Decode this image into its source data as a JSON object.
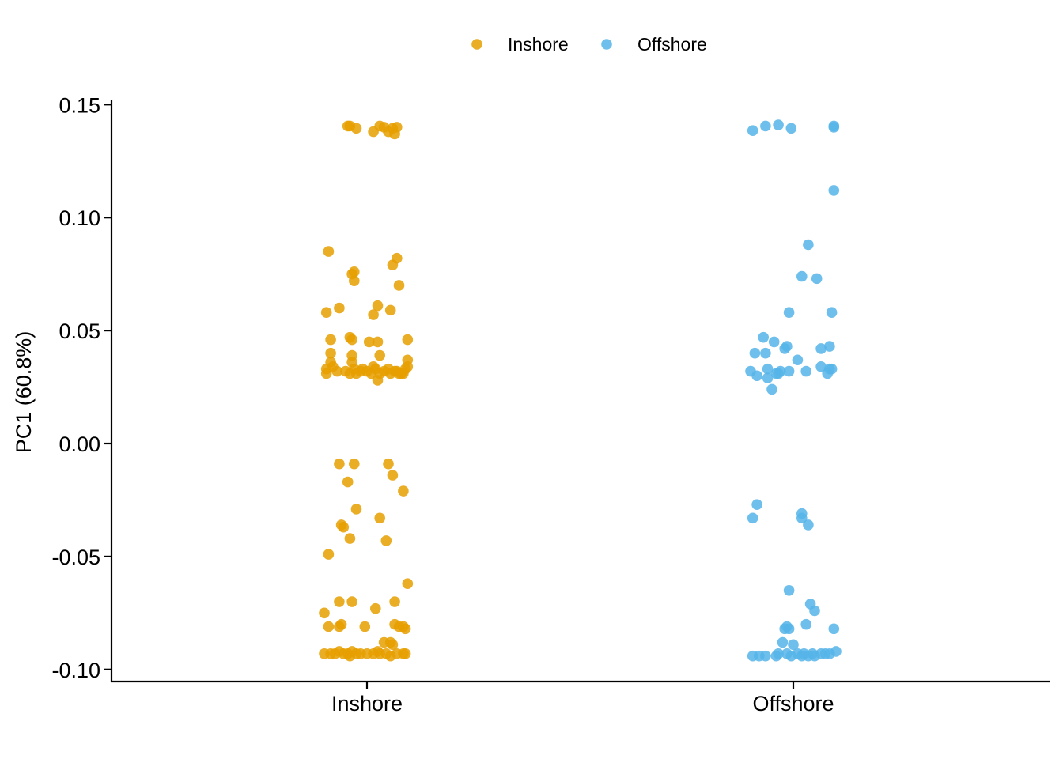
{
  "chart_data": {
    "type": "scatter",
    "xlabel": "",
    "ylabel": "PC1 (60.8%)",
    "ylim": [
      -0.105,
      0.152
    ],
    "yticks": [
      -0.1,
      -0.05,
      0.0,
      0.05,
      0.1,
      0.15
    ],
    "ytick_labels": [
      "-0.10",
      "-0.05",
      "0.00",
      "0.05",
      "0.10",
      "0.15"
    ],
    "categories": [
      "Inshore",
      "Offshore"
    ],
    "grid": false,
    "legend": "top",
    "series": [
      {
        "name": "Inshore",
        "color": "#E69F00",
        "category": "Inshore",
        "points": [
          [
            -0.09,
            0.1405
          ],
          [
            -0.08,
            0.1405
          ],
          [
            -0.05,
            0.1395
          ],
          [
            0.03,
            0.138
          ],
          [
            0.06,
            0.1405
          ],
          [
            0.08,
            0.14
          ],
          [
            0.1,
            0.138
          ],
          [
            0.12,
            0.1395
          ],
          [
            0.14,
            0.14
          ],
          [
            0.13,
            0.137
          ],
          [
            -0.18,
            0.085
          ],
          [
            -0.06,
            0.076
          ],
          [
            -0.07,
            0.075
          ],
          [
            -0.06,
            0.072
          ],
          [
            0.14,
            0.082
          ],
          [
            0.12,
            0.079
          ],
          [
            0.15,
            0.07
          ],
          [
            -0.19,
            0.058
          ],
          [
            -0.13,
            0.06
          ],
          [
            0.05,
            0.061
          ],
          [
            0.03,
            0.057
          ],
          [
            0.11,
            0.059
          ],
          [
            -0.17,
            0.046
          ],
          [
            -0.08,
            0.047
          ],
          [
            -0.07,
            0.046
          ],
          [
            0.01,
            0.045
          ],
          [
            0.05,
            0.045
          ],
          [
            0.19,
            0.046
          ],
          [
            -0.17,
            0.04
          ],
          [
            -0.07,
            0.039
          ],
          [
            0.06,
            0.039
          ],
          [
            -0.17,
            0.036
          ],
          [
            -0.16,
            0.034
          ],
          [
            -0.19,
            0.033
          ],
          [
            -0.19,
            0.031
          ],
          [
            -0.14,
            0.032
          ],
          [
            -0.1,
            0.032
          ],
          [
            -0.08,
            0.031
          ],
          [
            -0.07,
            0.036
          ],
          [
            -0.06,
            0.033
          ],
          [
            -0.05,
            0.031
          ],
          [
            -0.03,
            0.032
          ],
          [
            -0.02,
            0.033
          ],
          [
            0.0,
            0.032
          ],
          [
            0.02,
            0.031
          ],
          [
            0.03,
            0.034
          ],
          [
            0.04,
            0.033
          ],
          [
            0.05,
            0.028
          ],
          [
            0.06,
            0.031
          ],
          [
            0.08,
            0.032
          ],
          [
            0.1,
            0.033
          ],
          [
            0.11,
            0.031
          ],
          [
            0.13,
            0.032
          ],
          [
            0.15,
            0.031
          ],
          [
            0.17,
            0.031
          ],
          [
            0.18,
            0.033
          ],
          [
            0.19,
            0.034
          ],
          [
            0.19,
            0.037
          ],
          [
            0.16,
            0.031
          ],
          [
            0.14,
            0.032
          ],
          [
            -0.13,
            -0.009
          ],
          [
            -0.06,
            -0.009
          ],
          [
            0.1,
            -0.009
          ],
          [
            -0.09,
            -0.017
          ],
          [
            0.12,
            -0.014
          ],
          [
            0.17,
            -0.021
          ],
          [
            -0.05,
            -0.029
          ],
          [
            0.06,
            -0.033
          ],
          [
            -0.12,
            -0.036
          ],
          [
            -0.11,
            -0.037
          ],
          [
            -0.08,
            -0.042
          ],
          [
            0.09,
            -0.043
          ],
          [
            -0.18,
            -0.049
          ],
          [
            0.19,
            -0.062
          ],
          [
            -0.13,
            -0.07
          ],
          [
            -0.07,
            -0.07
          ],
          [
            0.13,
            -0.07
          ],
          [
            -0.2,
            -0.075
          ],
          [
            0.04,
            -0.073
          ],
          [
            -0.18,
            -0.081
          ],
          [
            -0.13,
            -0.081
          ],
          [
            -0.12,
            -0.08
          ],
          [
            -0.01,
            -0.081
          ],
          [
            0.13,
            -0.08
          ],
          [
            0.15,
            -0.081
          ],
          [
            0.17,
            -0.081
          ],
          [
            0.18,
            -0.082
          ],
          [
            0.08,
            -0.088
          ],
          [
            0.11,
            -0.088
          ],
          [
            0.12,
            -0.089
          ],
          [
            -0.2,
            -0.093
          ],
          [
            -0.17,
            -0.093
          ],
          [
            -0.15,
            -0.093
          ],
          [
            -0.13,
            -0.092
          ],
          [
            -0.11,
            -0.093
          ],
          [
            -0.09,
            -0.093
          ],
          [
            -0.08,
            -0.094
          ],
          [
            -0.07,
            -0.092
          ],
          [
            -0.05,
            -0.093
          ],
          [
            -0.03,
            -0.093
          ],
          [
            -0.0,
            -0.093
          ],
          [
            0.03,
            -0.093
          ],
          [
            0.05,
            -0.092
          ],
          [
            0.06,
            -0.093
          ],
          [
            0.09,
            -0.093
          ],
          [
            0.11,
            -0.094
          ],
          [
            0.14,
            -0.093
          ],
          [
            0.17,
            -0.093
          ],
          [
            0.18,
            -0.093
          ]
        ]
      },
      {
        "name": "Offshore",
        "color": "#56B4E9",
        "category": "Offshore",
        "points": [
          [
            -0.19,
            0.1385
          ],
          [
            -0.13,
            0.1405
          ],
          [
            -0.07,
            0.141
          ],
          [
            -0.01,
            0.1395
          ],
          [
            0.19,
            0.1405
          ],
          [
            0.19,
            0.14
          ],
          [
            0.19,
            0.112
          ],
          [
            0.07,
            0.088
          ],
          [
            0.04,
            0.074
          ],
          [
            0.11,
            0.073
          ],
          [
            -0.02,
            0.058
          ],
          [
            0.18,
            0.058
          ],
          [
            -0.14,
            0.047
          ],
          [
            -0.09,
            0.045
          ],
          [
            -0.03,
            0.043
          ],
          [
            -0.04,
            0.042
          ],
          [
            -0.18,
            0.04
          ],
          [
            -0.13,
            0.04
          ],
          [
            0.17,
            0.043
          ],
          [
            0.13,
            0.042
          ],
          [
            0.02,
            0.037
          ],
          [
            -0.2,
            0.032
          ],
          [
            -0.17,
            0.03
          ],
          [
            -0.12,
            0.033
          ],
          [
            -0.08,
            0.031
          ],
          [
            -0.07,
            0.031
          ],
          [
            -0.02,
            0.032
          ],
          [
            -0.06,
            0.032
          ],
          [
            -0.12,
            0.029
          ],
          [
            -0.1,
            0.024
          ],
          [
            0.06,
            0.032
          ],
          [
            0.13,
            0.034
          ],
          [
            0.16,
            0.031
          ],
          [
            0.17,
            0.033
          ],
          [
            0.18,
            0.033
          ],
          [
            -0.17,
            -0.027
          ],
          [
            -0.19,
            -0.033
          ],
          [
            0.04,
            -0.031
          ],
          [
            0.04,
            -0.033
          ],
          [
            0.07,
            -0.036
          ],
          [
            -0.02,
            -0.065
          ],
          [
            0.08,
            -0.071
          ],
          [
            0.1,
            -0.074
          ],
          [
            0.06,
            -0.08
          ],
          [
            -0.03,
            -0.081
          ],
          [
            -0.04,
            -0.082
          ],
          [
            -0.02,
            -0.082
          ],
          [
            0.19,
            -0.082
          ],
          [
            -0.05,
            -0.088
          ],
          [
            0.0,
            -0.089
          ],
          [
            -0.19,
            -0.094
          ],
          [
            -0.16,
            -0.094
          ],
          [
            -0.13,
            -0.094
          ],
          [
            -0.08,
            -0.094
          ],
          [
            -0.07,
            -0.093
          ],
          [
            -0.03,
            -0.093
          ],
          [
            -0.01,
            -0.094
          ],
          [
            0.02,
            -0.093
          ],
          [
            0.04,
            -0.094
          ],
          [
            0.05,
            -0.093
          ],
          [
            0.07,
            -0.094
          ],
          [
            0.09,
            -0.093
          ],
          [
            0.1,
            -0.094
          ],
          [
            0.13,
            -0.093
          ],
          [
            0.15,
            -0.093
          ],
          [
            0.17,
            -0.093
          ],
          [
            0.2,
            -0.092
          ]
        ]
      }
    ]
  }
}
